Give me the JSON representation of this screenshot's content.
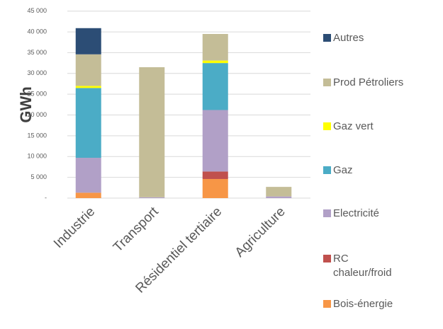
{
  "chart_data": {
    "type": "stacked-bar",
    "y_label": "GWh",
    "categories": [
      "Industrie",
      "Transport",
      "Résidentiel tertiaire",
      "Agriculture"
    ],
    "series": [
      {
        "name": "Bois-énergie",
        "color": "#f79646",
        "values": [
          1300,
          0,
          4600,
          0
        ]
      },
      {
        "name": "RC chaleur/froid",
        "color": "#c0504d",
        "values": [
          0,
          0,
          1800,
          0
        ]
      },
      {
        "name": "Electricité",
        "color": "#b1a0c7",
        "values": [
          8400,
          200,
          14800,
          400
        ]
      },
      {
        "name": "Gaz",
        "color": "#4bacc6",
        "values": [
          16800,
          0,
          11300,
          0
        ]
      },
      {
        "name": "Gaz vert",
        "color": "#ffff00",
        "values": [
          500,
          0,
          600,
          0
        ]
      },
      {
        "name": "Prod Pétroliers",
        "color": "#c4bd97",
        "values": [
          7600,
          31300,
          6400,
          2300
        ]
      },
      {
        "name": "Autres",
        "color": "#2c4d75",
        "values": [
          6300,
          0,
          0,
          0
        ]
      }
    ],
    "ylim": [
      0,
      45000
    ],
    "yticks": [
      {
        "value": 0,
        "label": "-"
      },
      {
        "value": 5000,
        "label": "5 000"
      },
      {
        "value": 10000,
        "label": "10 000"
      },
      {
        "value": 15000,
        "label": "15 000"
      },
      {
        "value": 20000,
        "label": "20 000"
      },
      {
        "value": 25000,
        "label": "25 000"
      },
      {
        "value": 30000,
        "label": "30 000"
      },
      {
        "value": 35000,
        "label": "35 000"
      },
      {
        "value": 40000,
        "label": "40 000"
      },
      {
        "value": 45000,
        "label": "45 000"
      }
    ],
    "grid": true
  }
}
